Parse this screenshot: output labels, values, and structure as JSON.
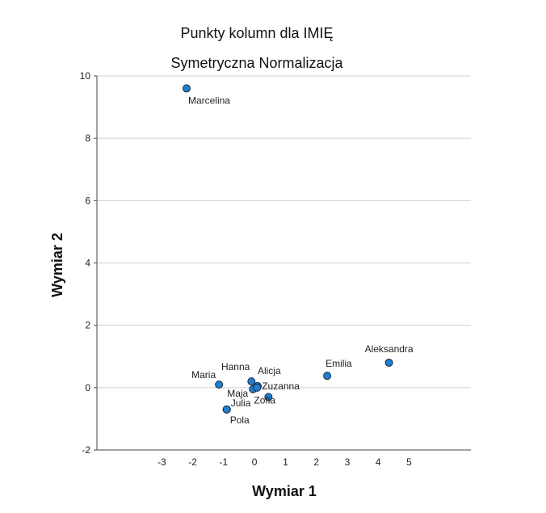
{
  "chart_data": {
    "type": "scatter",
    "title": "Punkty kolumn dla IMIĘ",
    "subtitle": "Symetryczna Normalizacja",
    "xlabel": "Wymiar 1",
    "ylabel": "Wymiar 2",
    "xlim": [
      -5.1,
      7.0
    ],
    "ylim": [
      -2,
      10
    ],
    "xticks": [
      -3,
      -2,
      -1,
      0,
      1,
      2,
      3,
      4,
      5
    ],
    "yticks": [
      -2,
      0,
      2,
      4,
      6,
      8,
      10
    ],
    "grid": "horizontal",
    "marker_color": "#1f7fd1",
    "marker_edge": "#1a2a3a",
    "gridline_color": "#d0d0d0",
    "points": [
      {
        "label": "Marcelina",
        "x": -2.2,
        "y": 9.6
      },
      {
        "label": "Aleksandra",
        "x": 4.35,
        "y": 0.8
      },
      {
        "label": "Emilia",
        "x": 2.35,
        "y": 0.38
      },
      {
        "label": "Maria",
        "x": -1.15,
        "y": 0.1
      },
      {
        "label": "Hanna",
        "x": -0.1,
        "y": 0.2
      },
      {
        "label": "Alicja",
        "x": 0.1,
        "y": 0.05
      },
      {
        "label": "Maja",
        "x": -0.05,
        "y": -0.05
      },
      {
        "label": "Zuzanna",
        "x": 0.08,
        "y": 0.0
      },
      {
        "label": "Zofia",
        "x": 0.45,
        "y": -0.3
      },
      {
        "label": "Julia",
        "x": -0.9,
        "y": -0.7
      },
      {
        "label": "Pola",
        "x": -0.9,
        "y": -0.7
      }
    ]
  }
}
